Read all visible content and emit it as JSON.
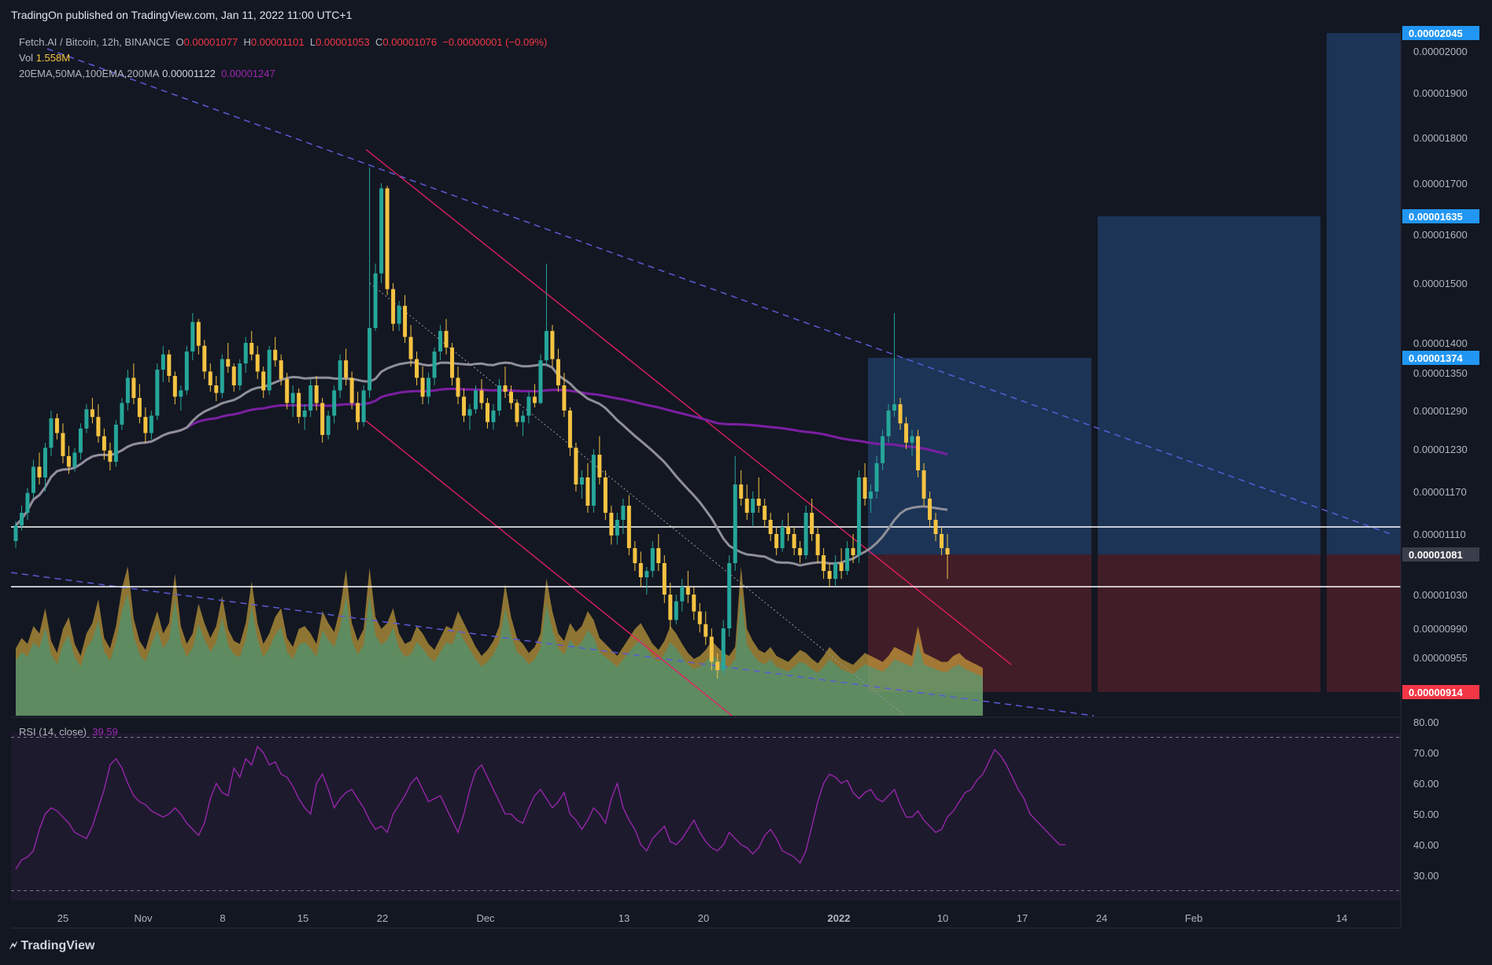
{
  "header": {
    "published": "TradingOn published on TradingView.com, Jan 11, 2022 11:00 UTC+1"
  },
  "legend": {
    "symbol": "Fetch.AI / Bitcoin, 12h, BINANCE",
    "o_label": "O",
    "o_val": "0.00001077",
    "h_label": "H",
    "h_val": "0.00001101",
    "l_label": "L",
    "l_val": "0.00001053",
    "c_label": "C",
    "c_val": "0.00001076",
    "change": "−0.00000001 (−0.09%)",
    "vol_label": "Vol",
    "vol_val": "1.558M",
    "ma_label": "20EMA,50MA,100EMA,200MA",
    "ma_val1": "0.00001122",
    "ma_val2": "0.00001247",
    "rsi_label": "RSI (14, close)",
    "rsi_val": "39.59"
  },
  "footer": {
    "brand": "TradingView"
  },
  "colors": {
    "background": "#131722",
    "up": "#26a69a",
    "down": "#f5c342",
    "ema50": "#8f8f99",
    "ma200": "#7b1fa2",
    "trend_dashed": "#5b5bd6",
    "channel": "#e91e63",
    "rsi_line": "#9c27b0",
    "target_zone": "#1e3a5f",
    "stop_zone": "#4a1f28"
  },
  "chart_data": {
    "type": "candlestick",
    "symbol": "Fetch.AI / Bitcoin",
    "interval": "12h",
    "x_ticks": [
      "25",
      "Nov",
      "8",
      "15",
      "22",
      "Dec",
      "13",
      "20",
      "2022",
      "10",
      "17",
      "24",
      "Feb",
      "14"
    ],
    "price_ticks": [
      "0.00002000",
      "0.00001900",
      "0.00001800",
      "0.00001700",
      "0.00001600",
      "0.00001500",
      "0.00001400",
      "0.00001350",
      "0.00001290",
      "0.00001230",
      "0.00001170",
      "0.00001110",
      "0.00001030",
      "0.00000990",
      "0.00000955"
    ],
    "price_labels": [
      {
        "value": "0.00002045",
        "color": "#2196f3"
      },
      {
        "value": "0.00001635",
        "color": "#2196f3"
      },
      {
        "value": "0.00001374",
        "color": "#2196f3"
      },
      {
        "value": "0.00001081",
        "color": "#3a3e4a"
      },
      {
        "value": "0.00000914",
        "color": "#f23645"
      }
    ],
    "horizontal_levels": [
      1.12e-05,
      1.04e-05
    ],
    "rsi": {
      "ticks": [
        "80.00",
        "70.00",
        "60.00",
        "50.00",
        "40.00",
        "30.00"
      ],
      "bands": [
        75,
        25
      ],
      "values": [
        32,
        35,
        36,
        38,
        45,
        50,
        52,
        51,
        49,
        47,
        44,
        43,
        42,
        46,
        52,
        58,
        66,
        68,
        65,
        60,
        56,
        54,
        53,
        51,
        50,
        49,
        50,
        52,
        50,
        47,
        45,
        43,
        47,
        55,
        60,
        57,
        56,
        65,
        62,
        68,
        66,
        72,
        70,
        66,
        67,
        63,
        62,
        59,
        55,
        52,
        50,
        60,
        63,
        58,
        52,
        55,
        57,
        58,
        55,
        52,
        48,
        45,
        46,
        44,
        50,
        53,
        56,
        60,
        62,
        58,
        54,
        55,
        56,
        52,
        48,
        44,
        50,
        58,
        64,
        66,
        62,
        58,
        54,
        50,
        50,
        48,
        47,
        52,
        56,
        58,
        55,
        52,
        54,
        57,
        50,
        48,
        45,
        48,
        52,
        50,
        47,
        55,
        60,
        52,
        48,
        45,
        40,
        38,
        42,
        44,
        46,
        41,
        40,
        42,
        45,
        48,
        44,
        41,
        39,
        38,
        40,
        44,
        42,
        40,
        39,
        37,
        39,
        43,
        45,
        42,
        38,
        37,
        36,
        34,
        38,
        46,
        54,
        60,
        63,
        62,
        60,
        61,
        57,
        55,
        57,
        58,
        55,
        54,
        56,
        58,
        53,
        49,
        49,
        51,
        48,
        46,
        44,
        45,
        49,
        51,
        54,
        57,
        58,
        61,
        63,
        67,
        71,
        69,
        66,
        62,
        58,
        55,
        50,
        48,
        46,
        44,
        42,
        40,
        40
      ]
    },
    "candles": [
      [
        1.1,
        1.128,
        1.09,
        1.122
      ],
      [
        1.122,
        1.15,
        1.115,
        1.14
      ],
      [
        1.14,
        1.175,
        1.13,
        1.168
      ],
      [
        1.168,
        1.215,
        1.16,
        1.205
      ],
      [
        1.205,
        1.225,
        1.18,
        1.19
      ],
      [
        1.19,
        1.24,
        1.17,
        1.232
      ],
      [
        1.232,
        1.29,
        1.22,
        1.278
      ],
      [
        1.278,
        1.285,
        1.245,
        1.255
      ],
      [
        1.255,
        1.27,
        1.21,
        1.22
      ],
      [
        1.22,
        1.235,
        1.195,
        1.205
      ],
      [
        1.205,
        1.232,
        1.198,
        1.225
      ],
      [
        1.225,
        1.27,
        1.215,
        1.262
      ],
      [
        1.262,
        1.3,
        1.255,
        1.292
      ],
      [
        1.292,
        1.31,
        1.27,
        1.28
      ],
      [
        1.28,
        1.3,
        1.24,
        1.25
      ],
      [
        1.25,
        1.262,
        1.215,
        1.228
      ],
      [
        1.228,
        1.24,
        1.2,
        1.212
      ],
      [
        1.212,
        1.275,
        1.205,
        1.268
      ],
      [
        1.268,
        1.31,
        1.26,
        1.302
      ],
      [
        1.302,
        1.355,
        1.29,
        1.342
      ],
      [
        1.342,
        1.365,
        1.3,
        1.31
      ],
      [
        1.31,
        1.332,
        1.27,
        1.28
      ],
      [
        1.28,
        1.295,
        1.24,
        1.255
      ],
      [
        1.255,
        1.29,
        1.245,
        1.282
      ],
      [
        1.282,
        1.365,
        1.275,
        1.355
      ],
      [
        1.355,
        1.395,
        1.335,
        1.38
      ],
      [
        1.38,
        1.388,
        1.335,
        1.345
      ],
      [
        1.345,
        1.352,
        1.3,
        1.312
      ],
      [
        1.312,
        1.33,
        1.29,
        1.322
      ],
      [
        1.322,
        1.395,
        1.315,
        1.385
      ],
      [
        1.385,
        1.45,
        1.37,
        1.435
      ],
      [
        1.435,
        1.44,
        1.38,
        1.395
      ],
      [
        1.395,
        1.405,
        1.34,
        1.352
      ],
      [
        1.352,
        1.365,
        1.32,
        1.33
      ],
      [
        1.33,
        1.345,
        1.305,
        1.318
      ],
      [
        1.318,
        1.38,
        1.31,
        1.372
      ],
      [
        1.372,
        1.4,
        1.35,
        1.36
      ],
      [
        1.36,
        1.365,
        1.32,
        1.33
      ],
      [
        1.33,
        1.372,
        1.322,
        1.365
      ],
      [
        1.365,
        1.41,
        1.35,
        1.4
      ],
      [
        1.4,
        1.42,
        1.37,
        1.38
      ],
      [
        1.38,
        1.395,
        1.34,
        1.352
      ],
      [
        1.352,
        1.36,
        1.31,
        1.322
      ],
      [
        1.322,
        1.395,
        1.315,
        1.388
      ],
      [
        1.388,
        1.41,
        1.36,
        1.37
      ],
      [
        1.37,
        1.38,
        1.33,
        1.34
      ],
      [
        1.34,
        1.35,
        1.292,
        1.302
      ],
      [
        1.302,
        1.33,
        1.28,
        1.318
      ],
      [
        1.318,
        1.325,
        1.27,
        1.28
      ],
      [
        1.28,
        1.3,
        1.26,
        1.29
      ],
      [
        1.29,
        1.34,
        1.28,
        1.33
      ],
      [
        1.33,
        1.345,
        1.29,
        1.302
      ],
      [
        1.302,
        1.31,
        1.24,
        1.252
      ],
      [
        1.252,
        1.29,
        1.245,
        1.282
      ],
      [
        1.282,
        1.33,
        1.27,
        1.322
      ],
      [
        1.322,
        1.38,
        1.31,
        1.37
      ],
      [
        1.37,
        1.39,
        1.33,
        1.342
      ],
      [
        1.342,
        1.352,
        1.292,
        1.302
      ],
      [
        1.302,
        1.32,
        1.26,
        1.272
      ],
      [
        1.272,
        1.33,
        1.265,
        1.322
      ],
      [
        1.322,
        1.735,
        1.31,
        1.425
      ],
      [
        1.425,
        1.54,
        1.42,
        1.52
      ],
      [
        1.52,
        1.7,
        1.5,
        1.69
      ],
      [
        1.69,
        1.695,
        1.48,
        1.49
      ],
      [
        1.49,
        1.5,
        1.42,
        1.432
      ],
      [
        1.432,
        1.47,
        1.42,
        1.462
      ],
      [
        1.462,
        1.48,
        1.4,
        1.41
      ],
      [
        1.41,
        1.43,
        1.36,
        1.372
      ],
      [
        1.372,
        1.385,
        1.33,
        1.342
      ],
      [
        1.342,
        1.36,
        1.3,
        1.312
      ],
      [
        1.312,
        1.35,
        1.3,
        1.342
      ],
      [
        1.342,
        1.392,
        1.33,
        1.385
      ],
      [
        1.385,
        1.43,
        1.37,
        1.42
      ],
      [
        1.42,
        1.44,
        1.38,
        1.392
      ],
      [
        1.392,
        1.4,
        1.33,
        1.342
      ],
      [
        1.342,
        1.36,
        1.3,
        1.312
      ],
      [
        1.312,
        1.325,
        1.272,
        1.282
      ],
      [
        1.282,
        1.3,
        1.26,
        1.292
      ],
      [
        1.292,
        1.33,
        1.285,
        1.322
      ],
      [
        1.322,
        1.34,
        1.292,
        1.302
      ],
      [
        1.302,
        1.31,
        1.262,
        1.272
      ],
      [
        1.272,
        1.3,
        1.26,
        1.29
      ],
      [
        1.29,
        1.34,
        1.282,
        1.33
      ],
      [
        1.33,
        1.36,
        1.31,
        1.32
      ],
      [
        1.32,
        1.33,
        1.292,
        1.302
      ],
      [
        1.302,
        1.308,
        1.265,
        1.272
      ],
      [
        1.272,
        1.29,
        1.25,
        1.282
      ],
      [
        1.282,
        1.32,
        1.27,
        1.312
      ],
      [
        1.312,
        1.332,
        1.295,
        1.302
      ],
      [
        1.302,
        1.38,
        1.3,
        1.37
      ],
      [
        1.37,
        1.54,
        1.36,
        1.42
      ],
      [
        1.42,
        1.43,
        1.36,
        1.372
      ],
      [
        1.372,
        1.39,
        1.32,
        1.33
      ],
      [
        1.33,
        1.35,
        1.28,
        1.29
      ],
      [
        1.29,
        1.295,
        1.22,
        1.232
      ],
      [
        1.232,
        1.24,
        1.17,
        1.18
      ],
      [
        1.18,
        1.2,
        1.16,
        1.19
      ],
      [
        1.19,
        1.21,
        1.14,
        1.15
      ],
      [
        1.15,
        1.23,
        1.14,
        1.222
      ],
      [
        1.222,
        1.25,
        1.18,
        1.19
      ],
      [
        1.19,
        1.2,
        1.13,
        1.14
      ],
      [
        1.14,
        1.15,
        1.095,
        1.108
      ],
      [
        1.108,
        1.14,
        1.095,
        1.13
      ],
      [
        1.13,
        1.16,
        1.11,
        1.15
      ],
      [
        1.15,
        1.165,
        1.08,
        1.09
      ],
      [
        1.09,
        1.1,
        1.06,
        1.07
      ],
      [
        1.07,
        1.085,
        1.04,
        1.052
      ],
      [
        1.052,
        1.065,
        1.03,
        1.06
      ],
      [
        1.06,
        1.1,
        1.052,
        1.09
      ],
      [
        1.09,
        1.11,
        1.06,
        1.07
      ],
      [
        1.07,
        1.08,
        1.02,
        1.03
      ],
      [
        1.03,
        1.045,
        0.99,
        1.0
      ],
      [
        1.0,
        1.03,
        0.995,
        1.022
      ],
      [
        1.022,
        1.05,
        1.01,
        1.04
      ],
      [
        1.04,
        1.06,
        1.02,
        1.03
      ],
      [
        1.03,
        1.04,
        1.0,
        1.01
      ],
      [
        1.01,
        1.02,
        0.985,
        0.995
      ],
      [
        0.995,
        1.01,
        0.97,
        0.98
      ],
      [
        0.98,
        0.99,
        0.94,
        0.95
      ],
      [
        0.95,
        0.96,
        0.93,
        0.94
      ],
      [
        0.94,
        1.0,
        0.935,
        0.99
      ],
      [
        0.99,
        1.08,
        0.98,
        1.07
      ],
      [
        1.07,
        1.22,
        1.06,
        1.18
      ],
      [
        1.18,
        1.2,
        1.15,
        1.16
      ],
      [
        1.16,
        1.18,
        1.13,
        1.14
      ],
      [
        1.14,
        1.17,
        1.12,
        1.16
      ],
      [
        1.16,
        1.19,
        1.14,
        1.15
      ],
      [
        1.15,
        1.16,
        1.12,
        1.13
      ],
      [
        1.13,
        1.14,
        1.1,
        1.11
      ],
      [
        1.11,
        1.12,
        1.08,
        1.09
      ],
      [
        1.09,
        1.13,
        1.085,
        1.12
      ],
      [
        1.12,
        1.14,
        1.1,
        1.11
      ],
      [
        1.11,
        1.12,
        1.08,
        1.09
      ],
      [
        1.09,
        1.1,
        1.07,
        1.08
      ],
      [
        1.08,
        1.15,
        1.075,
        1.14
      ],
      [
        1.14,
        1.16,
        1.1,
        1.11
      ],
      [
        1.11,
        1.12,
        1.07,
        1.08
      ],
      [
        1.08,
        1.09,
        1.05,
        1.06
      ],
      [
        1.06,
        1.07,
        1.04,
        1.05
      ],
      [
        1.05,
        1.08,
        1.04,
        1.07
      ],
      [
        1.07,
        1.09,
        1.05,
        1.06
      ],
      [
        1.06,
        1.1,
        1.055,
        1.09
      ],
      [
        1.09,
        1.11,
        1.07,
        1.08
      ],
      [
        1.08,
        1.2,
        1.07,
        1.19
      ],
      [
        1.19,
        1.21,
        1.15,
        1.16
      ],
      [
        1.16,
        1.18,
        1.14,
        1.17
      ],
      [
        1.17,
        1.22,
        1.16,
        1.21
      ],
      [
        1.21,
        1.26,
        1.2,
        1.25
      ],
      [
        1.25,
        1.3,
        1.24,
        1.29
      ],
      [
        1.29,
        1.45,
        1.28,
        1.3
      ],
      [
        1.3,
        1.31,
        1.26,
        1.27
      ],
      [
        1.27,
        1.28,
        1.23,
        1.24
      ],
      [
        1.24,
        1.26,
        1.22,
        1.25
      ],
      [
        1.25,
        1.26,
        1.19,
        1.2
      ],
      [
        1.2,
        1.21,
        1.15,
        1.16
      ],
      [
        1.16,
        1.17,
        1.12,
        1.13
      ],
      [
        1.13,
        1.14,
        1.1,
        1.11
      ],
      [
        1.11,
        1.12,
        1.08,
        1.09
      ],
      [
        1.09,
        1.11,
        1.05,
        1.081
      ]
    ],
    "volume": [
      0.45,
      0.52,
      0.48,
      0.6,
      0.55,
      0.72,
      0.5,
      0.42,
      0.58,
      0.66,
      0.48,
      0.4,
      0.55,
      0.62,
      0.78,
      0.52,
      0.45,
      0.6,
      0.85,
      1.0,
      0.65,
      0.5,
      0.44,
      0.58,
      0.7,
      0.55,
      0.62,
      0.95,
      0.6,
      0.48,
      0.55,
      0.75,
      0.62,
      0.52,
      0.6,
      0.8,
      0.58,
      0.5,
      0.48,
      0.62,
      0.9,
      0.62,
      0.48,
      0.55,
      0.66,
      0.72,
      0.52,
      0.46,
      0.58,
      0.6,
      0.55,
      0.48,
      0.7,
      0.62,
      0.56,
      0.72,
      0.98,
      0.62,
      0.5,
      0.58,
      0.99,
      0.66,
      0.58,
      0.62,
      0.72,
      0.55,
      0.48,
      0.5,
      0.6,
      0.55,
      0.48,
      0.44,
      0.52,
      0.6,
      0.58,
      0.7,
      0.62,
      0.54,
      0.46,
      0.4,
      0.44,
      0.5,
      0.6,
      0.88,
      0.66,
      0.52,
      0.48,
      0.42,
      0.46,
      0.55,
      0.92,
      0.7,
      0.55,
      0.5,
      0.62,
      0.56,
      0.6,
      0.7,
      0.64,
      0.52,
      0.48,
      0.44,
      0.4,
      0.46,
      0.52,
      0.58,
      0.62,
      0.55,
      0.48,
      0.44,
      0.5,
      0.6,
      0.55,
      0.48,
      0.42,
      0.38,
      0.4,
      0.44,
      0.5,
      0.46,
      0.42,
      0.4,
      0.46,
      1.0,
      0.58,
      0.5,
      0.44,
      0.42,
      0.46,
      0.4,
      0.38,
      0.36,
      0.4,
      0.44,
      0.42,
      0.38,
      0.35,
      0.4,
      0.46,
      0.42,
      0.38,
      0.36,
      0.34,
      0.38,
      0.42,
      0.4,
      0.38,
      0.36,
      0.4,
      0.46,
      0.44,
      0.42,
      0.4,
      0.6,
      0.42,
      0.4,
      0.38,
      0.36,
      0.36,
      0.4,
      0.42,
      0.38,
      0.36,
      0.34,
      0.32
    ]
  }
}
